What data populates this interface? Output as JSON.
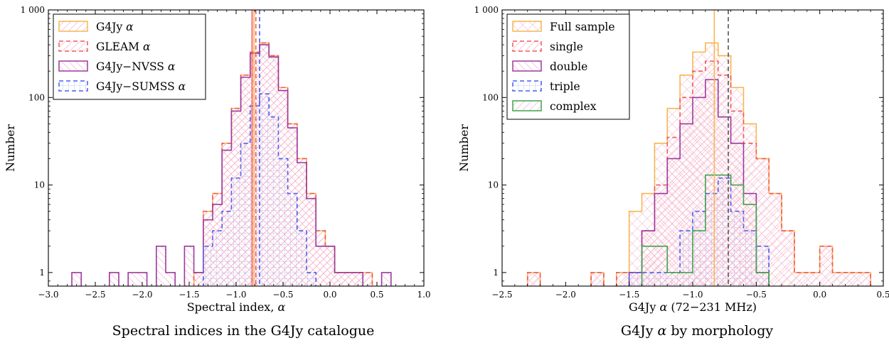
{
  "chart_data": [
    {
      "type": "histogram",
      "caption": "Spectral indices in the G4Jy catalogue",
      "xlabel": "Spectral index, ",
      "xlabel_symbol": "α",
      "ylabel": "Number",
      "xlim": [
        -3.0,
        1.0
      ],
      "ylim": [
        0.7,
        1000
      ],
      "y_scale": "log",
      "xticks": [
        "−3.0",
        "−2.5",
        "−2.0",
        "−1.5",
        "−1.0",
        "−0.5",
        "0.0",
        "0.5",
        "1.0"
      ],
      "xtick_values": [
        -3.0,
        -2.5,
        -2.0,
        -1.5,
        -1.0,
        -0.5,
        0.0,
        0.5,
        1.0
      ],
      "yticks": [
        "1",
        "10",
        "100",
        "1 000"
      ],
      "ytick_values": [
        1,
        10,
        100,
        1000
      ],
      "legend_position": "upper-left",
      "bin_edges": [
        -2.75,
        -2.65,
        -2.55,
        -2.45,
        -2.35,
        -2.25,
        -2.15,
        -2.05,
        -1.95,
        -1.85,
        -1.75,
        -1.65,
        -1.55,
        -1.45,
        -1.35,
        -1.25,
        -1.15,
        -1.05,
        -0.95,
        -0.85,
        -0.75,
        -0.65,
        -0.55,
        -0.45,
        -0.35,
        -0.25,
        -0.15,
        -0.05,
        0.05,
        0.15,
        0.25,
        0.35,
        0.45,
        0.55,
        0.65,
        0.75
      ],
      "series": [
        {
          "name": "G4Jy ",
          "symbol": "α",
          "color": "#f7b64f",
          "style": "solid",
          "counts": [
            0,
            0,
            0,
            0,
            0,
            0,
            0,
            0,
            0,
            0,
            0,
            0,
            0,
            1,
            5,
            8,
            30,
            75,
            180,
            330,
            420,
            300,
            130,
            50,
            20,
            8,
            3,
            2,
            1,
            1,
            1,
            1,
            0,
            0,
            0
          ]
        },
        {
          "name": "GLEAM ",
          "symbol": "α",
          "color": "#f0575c",
          "style": "dashed",
          "counts": [
            0,
            0,
            0,
            0,
            0,
            0,
            0,
            0,
            0,
            0,
            0,
            0,
            0,
            1,
            5,
            8,
            30,
            75,
            180,
            330,
            420,
            300,
            130,
            50,
            20,
            8,
            3,
            2,
            1,
            1,
            1,
            1,
            0,
            0,
            0
          ]
        },
        {
          "name": "G4Jy−NVSS ",
          "symbol": "α",
          "color": "#9b3a9e",
          "style": "solid",
          "counts": [
            1,
            0,
            0,
            0,
            1,
            0,
            1,
            1,
            0,
            2,
            1,
            0,
            2,
            1,
            4,
            6,
            25,
            70,
            170,
            320,
            400,
            290,
            120,
            45,
            18,
            7,
            2,
            2,
            1,
            1,
            1,
            0,
            0,
            1,
            0
          ]
        },
        {
          "name": "G4Jy−SUMSS ",
          "symbol": "α",
          "color": "#4d5ef0",
          "style": "dashed",
          "counts": [
            0,
            0,
            0,
            0,
            0,
            0,
            0,
            0,
            0,
            0,
            0,
            0,
            0,
            0,
            2,
            3,
            5,
            12,
            30,
            80,
            110,
            60,
            20,
            8,
            3,
            1,
            0,
            0,
            0,
            0,
            0,
            0,
            0,
            0,
            0
          ]
        }
      ],
      "vlines": [
        {
          "x": -0.83,
          "color": "#f0575c",
          "style": "solid"
        },
        {
          "x": -0.81,
          "color": "#f7b64f",
          "style": "solid"
        },
        {
          "x": -0.79,
          "color": "#f0575c",
          "style": "dashed"
        },
        {
          "x": -0.75,
          "color": "#4d5ef0",
          "style": "dashed"
        }
      ]
    },
    {
      "type": "histogram",
      "caption": "G4Jy  by morphology",
      "caption_parts": [
        "G4Jy ",
        "α",
        " by morphology"
      ],
      "xlabel": "G4Jy  (72−231 MHz)",
      "xlabel_parts": [
        "G4Jy ",
        "α",
        " (72−231 MHz)"
      ],
      "ylabel": "Number",
      "xlim": [
        -2.5,
        0.5
      ],
      "ylim": [
        0.7,
        1000
      ],
      "y_scale": "log",
      "xticks": [
        "−2.5",
        "−2.0",
        "−1.5",
        "−1.0",
        "−0.5",
        "0.0",
        "0.5"
      ],
      "xtick_values": [
        -2.5,
        -2.0,
        -1.5,
        -1.0,
        -0.5,
        0.0,
        0.5
      ],
      "yticks": [
        "1",
        "10",
        "100",
        "1 000"
      ],
      "ytick_values": [
        1,
        10,
        100,
        1000
      ],
      "legend_position": "upper-left",
      "bin_edges": [
        -2.3,
        -2.2,
        -2.1,
        -2.0,
        -1.9,
        -1.8,
        -1.7,
        -1.6,
        -1.5,
        -1.4,
        -1.3,
        -1.2,
        -1.1,
        -1.0,
        -0.9,
        -0.8,
        -0.7,
        -0.6,
        -0.5,
        -0.4,
        -0.3,
        -0.2,
        -0.1,
        0.0,
        0.1,
        0.2,
        0.3,
        0.4
      ],
      "series": [
        {
          "name": "Full sample",
          "color": "#f7b64f",
          "style": "solid",
          "counts": [
            1,
            0,
            0,
            0,
            0,
            1,
            0,
            1,
            5,
            8,
            30,
            75,
            180,
            330,
            420,
            300,
            130,
            50,
            20,
            8,
            3,
            1,
            1,
            2,
            1,
            1,
            1
          ]
        },
        {
          "name": "single",
          "color": "#f0575c",
          "style": "dashed",
          "counts": [
            1,
            0,
            0,
            0,
            0,
            1,
            0,
            1,
            1,
            3,
            10,
            35,
            100,
            200,
            260,
            180,
            70,
            30,
            20,
            8,
            3,
            1,
            1,
            2,
            1,
            1,
            1
          ]
        },
        {
          "name": "double",
          "color": "#9b3a9e",
          "style": "solid",
          "counts": [
            0,
            0,
            0,
            0,
            0,
            0,
            0,
            0,
            1,
            3,
            8,
            20,
            50,
            100,
            160,
            60,
            30,
            8,
            1,
            0,
            0,
            0,
            0,
            0,
            0,
            0,
            0
          ]
        },
        {
          "name": "triple",
          "color": "#4d5ef0",
          "style": "dashed",
          "counts": [
            0,
            0,
            0,
            0,
            0,
            0,
            0,
            0,
            1,
            1,
            1,
            1,
            3,
            5,
            8,
            12,
            5,
            3,
            2,
            0,
            0,
            0,
            0,
            0,
            0,
            0,
            0
          ]
        },
        {
          "name": "complex",
          "color": "#3fa34d",
          "style": "solid",
          "counts": [
            0,
            0,
            0,
            0,
            0,
            0,
            0,
            0,
            0,
            2,
            2,
            1,
            1,
            3,
            13,
            13,
            10,
            6,
            1,
            0,
            0,
            0,
            0,
            0,
            0,
            0,
            0
          ]
        }
      ],
      "vlines": [
        {
          "x": -0.83,
          "color": "#f7b64f",
          "style": "solid"
        },
        {
          "x": -0.72,
          "color": "#555555",
          "style": "dashed"
        }
      ]
    }
  ]
}
